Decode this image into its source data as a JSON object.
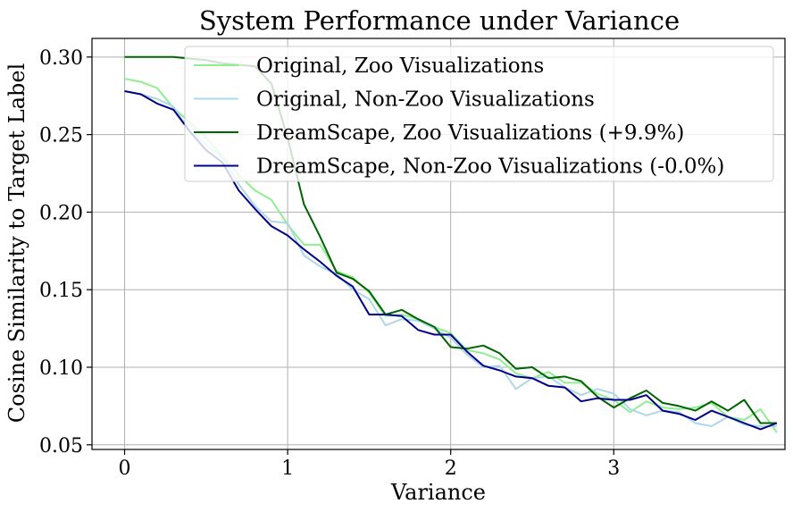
{
  "chart_data": {
    "type": "line",
    "title": "System Performance under Variance",
    "xlabel": "Variance",
    "ylabel": "Cosine Similarity to Target Label",
    "xlim": [
      -0.2,
      4.05
    ],
    "ylim": [
      0.047,
      0.312
    ],
    "xticks": [
      0,
      1,
      2,
      3
    ],
    "xtick_labels": [
      "0",
      "1",
      "2",
      "3"
    ],
    "yticks": [
      0.05,
      0.1,
      0.15,
      0.2,
      0.25,
      0.3
    ],
    "ytick_labels": [
      "0.05",
      "0.10",
      "0.15",
      "0.20",
      "0.25",
      "0.30"
    ],
    "grid": true,
    "legend_position": "top-right",
    "x": [
      0.0,
      0.1,
      0.2,
      0.3,
      0.4,
      0.5,
      0.6,
      0.7,
      0.8,
      0.9,
      1.0,
      1.1,
      1.2,
      1.3,
      1.4,
      1.5,
      1.6,
      1.7,
      1.8,
      1.9,
      2.0,
      2.1,
      2.2,
      2.3,
      2.4,
      2.5,
      2.6,
      2.7,
      2.8,
      2.9,
      3.0,
      3.1,
      3.2,
      3.3,
      3.4,
      3.5,
      3.6,
      3.7,
      3.8,
      3.9,
      4.0
    ],
    "series": [
      {
        "name": "Original, Zoo Visualizations",
        "color": "#90ee90",
        "values": [
          0.286,
          0.284,
          0.28,
          0.267,
          0.258,
          0.248,
          0.236,
          0.224,
          0.214,
          0.208,
          0.192,
          0.179,
          0.179,
          0.162,
          0.158,
          0.148,
          0.133,
          0.134,
          0.131,
          0.126,
          0.122,
          0.111,
          0.109,
          0.105,
          0.096,
          0.093,
          0.097,
          0.09,
          0.09,
          0.083,
          0.079,
          0.071,
          0.078,
          0.074,
          0.073,
          0.074,
          0.077,
          0.068,
          0.066,
          0.073,
          0.058
        ]
      },
      {
        "name": "Original, Non-Zoo Visualizations",
        "color": "#add8e6",
        "values": [
          0.278,
          0.276,
          0.273,
          0.268,
          0.252,
          0.244,
          0.235,
          0.218,
          0.204,
          0.194,
          0.193,
          0.172,
          0.165,
          0.16,
          0.15,
          0.144,
          0.127,
          0.131,
          0.13,
          0.125,
          0.119,
          0.108,
          0.1,
          0.101,
          0.086,
          0.093,
          0.094,
          0.087,
          0.082,
          0.086,
          0.083,
          0.073,
          0.069,
          0.072,
          0.071,
          0.064,
          0.062,
          0.068,
          0.063,
          0.062,
          0.062
        ]
      },
      {
        "name": "DreamScape, Zoo Visualizations (+9.9%)",
        "color": "#006400",
        "values": [
          0.3,
          0.3,
          0.3,
          0.3,
          0.299,
          0.298,
          0.296,
          0.295,
          0.294,
          0.283,
          0.248,
          0.205,
          0.184,
          0.161,
          0.157,
          0.149,
          0.134,
          0.137,
          0.131,
          0.126,
          0.113,
          0.112,
          0.114,
          0.109,
          0.099,
          0.1,
          0.093,
          0.094,
          0.091,
          0.081,
          0.074,
          0.08,
          0.085,
          0.077,
          0.075,
          0.072,
          0.078,
          0.072,
          0.079,
          0.064,
          0.064
        ]
      },
      {
        "name": "DreamScape, Non-Zoo Visualizations (-0.0%)",
        "color": "#00008b",
        "values": [
          0.278,
          0.276,
          0.27,
          0.266,
          0.252,
          0.24,
          0.232,
          0.214,
          0.202,
          0.191,
          0.185,
          0.176,
          0.168,
          0.159,
          0.152,
          0.134,
          0.134,
          0.133,
          0.124,
          0.121,
          0.121,
          0.11,
          0.101,
          0.098,
          0.094,
          0.093,
          0.088,
          0.087,
          0.078,
          0.08,
          0.079,
          0.079,
          0.082,
          0.072,
          0.07,
          0.066,
          0.072,
          0.068,
          0.064,
          0.06,
          0.064
        ]
      }
    ]
  }
}
